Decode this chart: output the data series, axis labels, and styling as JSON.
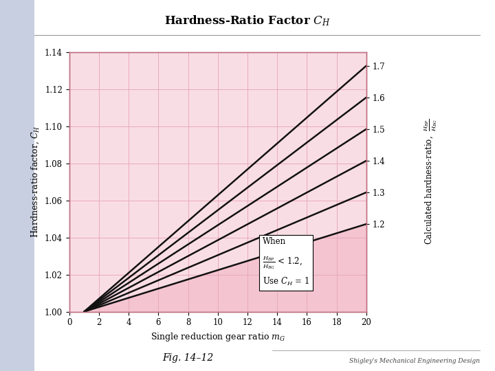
{
  "title": "Hardness-Ratio Factor $C_H$",
  "xlabel": "Single reduction gear ratio $m_G$",
  "ylabel": "Hardness-ratio factor, $C_H$",
  "fig_caption": "Fig. 14–12",
  "shigley_text": "Shigley's Mechanical Engineering Design",
  "xlim": [
    0,
    20
  ],
  "ylim": [
    1.0,
    1.14
  ],
  "xticks": [
    0,
    2,
    4,
    6,
    8,
    10,
    12,
    14,
    16,
    18,
    20
  ],
  "yticks_left": [
    1.0,
    1.02,
    1.04,
    1.06,
    1.08,
    1.1,
    1.12,
    1.14
  ],
  "yticks_right": [
    1.2,
    1.3,
    1.4,
    1.5,
    1.6,
    1.7
  ],
  "lines": [
    {
      "label": "1.2",
      "HBP_HBG": 1.2,
      "color": "#111111"
    },
    {
      "label": "1.3",
      "HBP_HBG": 1.3,
      "color": "#111111"
    },
    {
      "label": "1.4",
      "HBP_HBG": 1.4,
      "color": "#111111"
    },
    {
      "label": "1.5",
      "HBP_HBG": 1.5,
      "color": "#111111"
    },
    {
      "label": "1.6",
      "HBP_HBG": 1.6,
      "color": "#111111"
    },
    {
      "label": "1.7",
      "HBP_HBG": 1.7,
      "color": "#111111"
    }
  ],
  "plot_bg_color": "#f9dde5",
  "shade_color": "#f4c4d0",
  "grid_color": "#e8aabb",
  "figure_bg_color": "#ffffff",
  "sidebar_color": "#c8cfe0",
  "line_start_x": 1.0,
  "line_end_x": 20.0
}
